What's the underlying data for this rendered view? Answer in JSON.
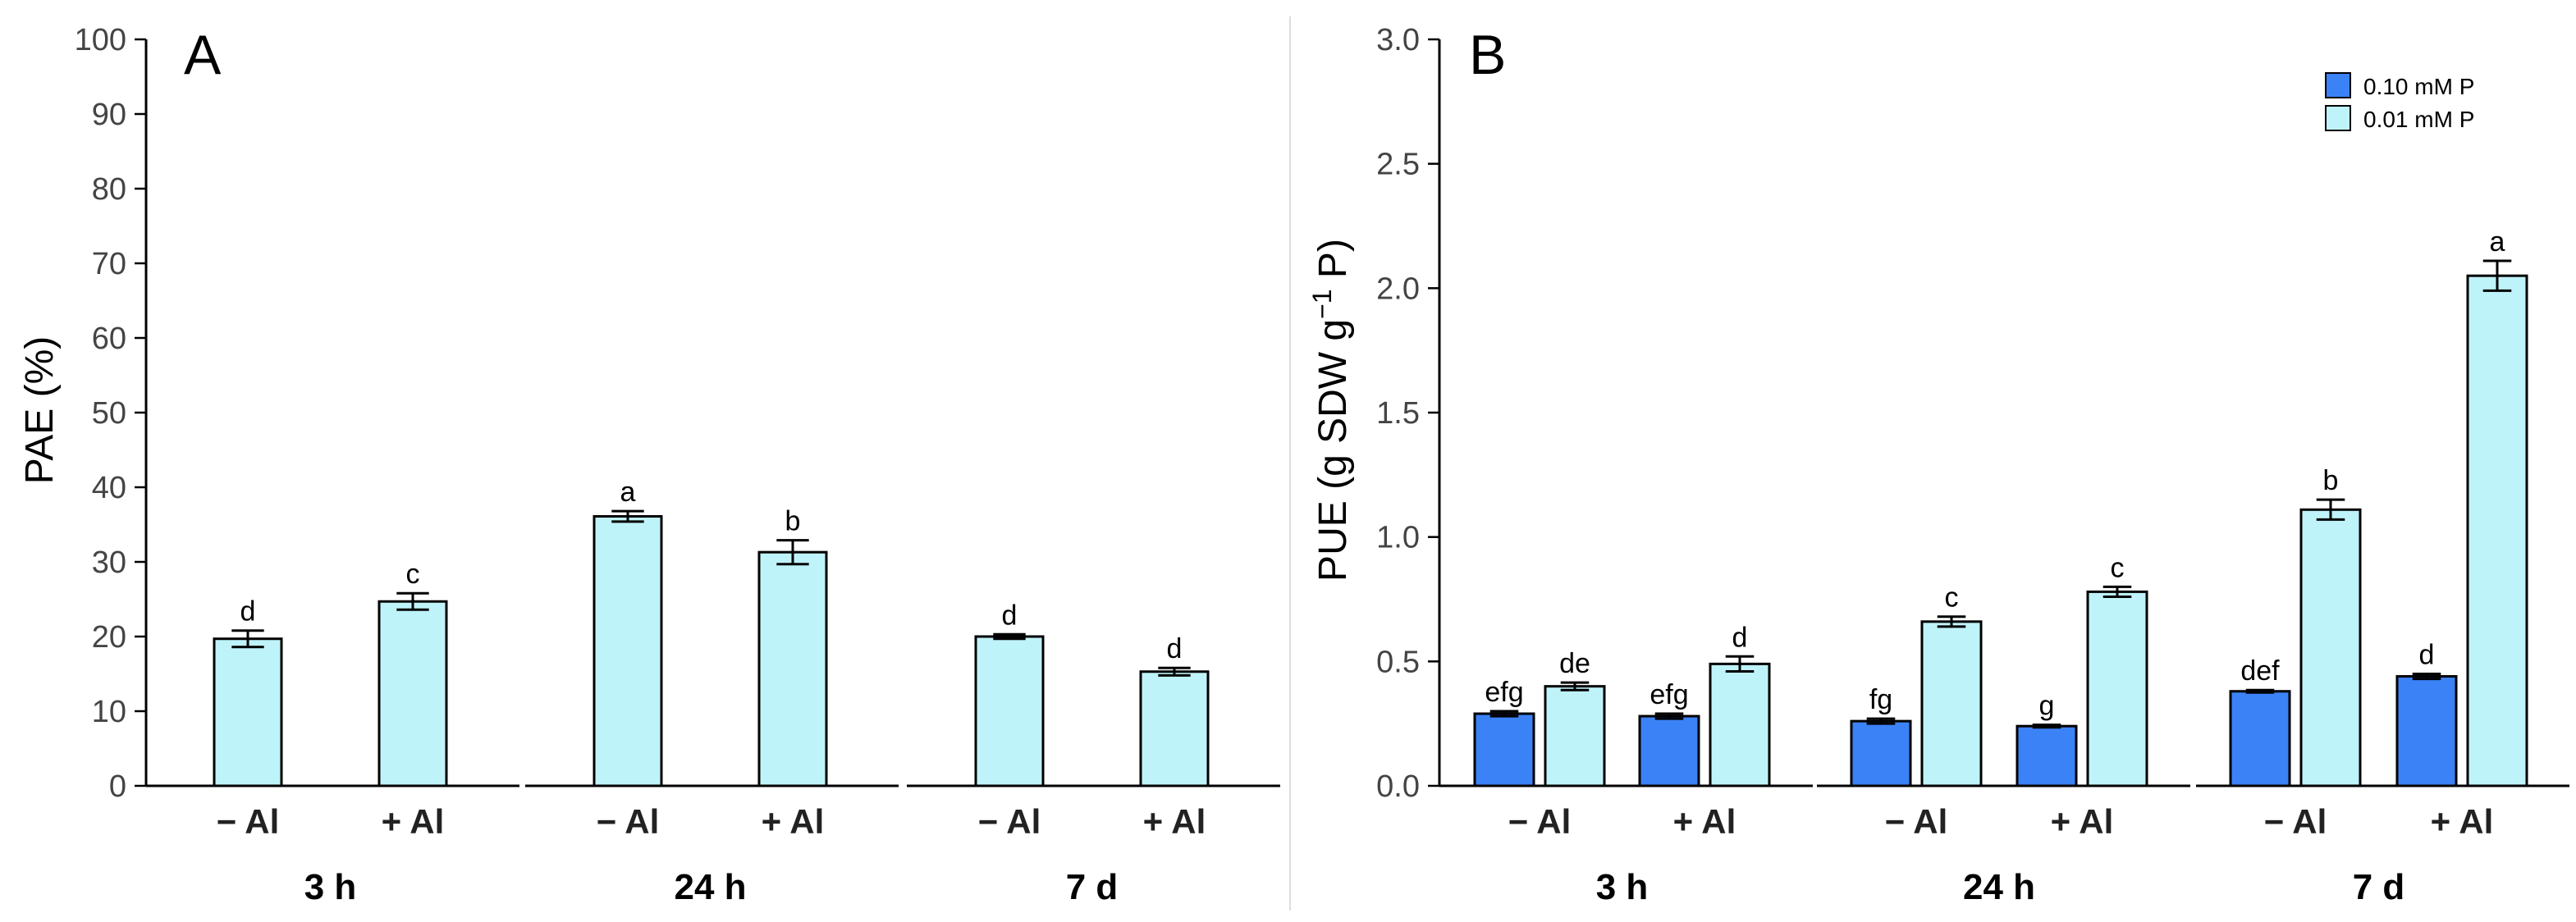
{
  "colors": {
    "high_p": "#3b82f6",
    "low_p": "#bff3fa",
    "stroke": "#000000",
    "separator": "#dddddd"
  },
  "chart_data": [
    {
      "type": "bar",
      "panel": "A",
      "xlabel": "",
      "ylabel": "PAE (%)",
      "ylim": [
        0,
        100
      ],
      "yticks": [
        0,
        10,
        20,
        30,
        40,
        50,
        60,
        70,
        80,
        90,
        100
      ],
      "ytick_labels": [
        "0",
        "10",
        "20",
        "30",
        "40",
        "50",
        "60",
        "70",
        "80",
        "90",
        "100"
      ],
      "grid": false,
      "groups": [
        {
          "label": "3 h",
          "categories": [
            {
              "label": "− Al",
              "bars": [
                {
                  "series": "0.01 mM P",
                  "value": 19.7,
                  "error": 1.1,
                  "letter": "d"
                }
              ]
            },
            {
              "label": "+ Al",
              "bars": [
                {
                  "series": "0.01 mM P",
                  "value": 24.7,
                  "error": 1.1,
                  "letter": "c"
                }
              ]
            }
          ]
        },
        {
          "label": "24 h",
          "categories": [
            {
              "label": "− Al",
              "bars": [
                {
                  "series": "0.01 mM P",
                  "value": 36.1,
                  "error": 0.7,
                  "letter": "a"
                }
              ]
            },
            {
              "label": "+ Al",
              "bars": [
                {
                  "series": "0.01 mM P",
                  "value": 31.3,
                  "error": 1.6,
                  "letter": "b"
                }
              ]
            }
          ]
        },
        {
          "label": "7 d",
          "categories": [
            {
              "label": "− Al",
              "bars": [
                {
                  "series": "0.01 mM P",
                  "value": 20.0,
                  "error": 0.3,
                  "letter": "d"
                }
              ]
            },
            {
              "label": "+ Al",
              "bars": [
                {
                  "series": "0.01 mM P",
                  "value": 15.3,
                  "error": 0.5,
                  "letter": "d"
                }
              ]
            }
          ]
        }
      ]
    },
    {
      "type": "bar",
      "panel": "B",
      "xlabel": "",
      "ylabel": "PUE (g SDW g",
      "ylabel_sup": "−1",
      "ylabel_end": " P)",
      "ylim": [
        0,
        3.0
      ],
      "yticks": [
        0,
        0.5,
        1.0,
        1.5,
        2.0,
        2.5,
        3.0
      ],
      "ytick_labels": [
        "0.0",
        "0.5",
        "1.0",
        "1.5",
        "2.0",
        "2.5",
        "3.0"
      ],
      "grid": false,
      "legend_position": "top-right",
      "legend": [
        "0.10 mM P",
        "0.01 mM P"
      ],
      "groups": [
        {
          "label": "3 h",
          "categories": [
            {
              "label": "− Al",
              "bars": [
                {
                  "series": "0.10 mM P",
                  "value": 0.29,
                  "error": 0.01,
                  "letter": "efg"
                },
                {
                  "series": "0.01 mM P",
                  "value": 0.4,
                  "error": 0.015,
                  "letter": "de"
                }
              ]
            },
            {
              "label": "+ Al",
              "bars": [
                {
                  "series": "0.10 mM P",
                  "value": 0.28,
                  "error": 0.01,
                  "letter": "efg"
                },
                {
                  "series": "0.01 mM P",
                  "value": 0.49,
                  "error": 0.03,
                  "letter": "d"
                }
              ]
            }
          ]
        },
        {
          "label": "24 h",
          "categories": [
            {
              "label": "− Al",
              "bars": [
                {
                  "series": "0.10 mM P",
                  "value": 0.26,
                  "error": 0.01,
                  "letter": "fg"
                },
                {
                  "series": "0.01 mM P",
                  "value": 0.66,
                  "error": 0.02,
                  "letter": "c"
                }
              ]
            },
            {
              "label": "+ Al",
              "bars": [
                {
                  "series": "0.10 mM P",
                  "value": 0.24,
                  "error": 0.005,
                  "letter": "g"
                },
                {
                  "series": "0.01 mM P",
                  "value": 0.78,
                  "error": 0.02,
                  "letter": "c"
                }
              ]
            }
          ]
        },
        {
          "label": "7 d",
          "categories": [
            {
              "label": "− Al",
              "bars": [
                {
                  "series": "0.10 mM P",
                  "value": 0.38,
                  "error": 0.005,
                  "letter": "def"
                },
                {
                  "series": "0.01 mM P",
                  "value": 1.11,
                  "error": 0.04,
                  "letter": "b"
                }
              ]
            },
            {
              "label": "+ Al",
              "bars": [
                {
                  "series": "0.10 mM P",
                  "value": 0.44,
                  "error": 0.01,
                  "letter": "d"
                },
                {
                  "series": "0.01 mM P",
                  "value": 2.05,
                  "error": 0.06,
                  "letter": "a"
                }
              ]
            }
          ]
        }
      ]
    }
  ]
}
